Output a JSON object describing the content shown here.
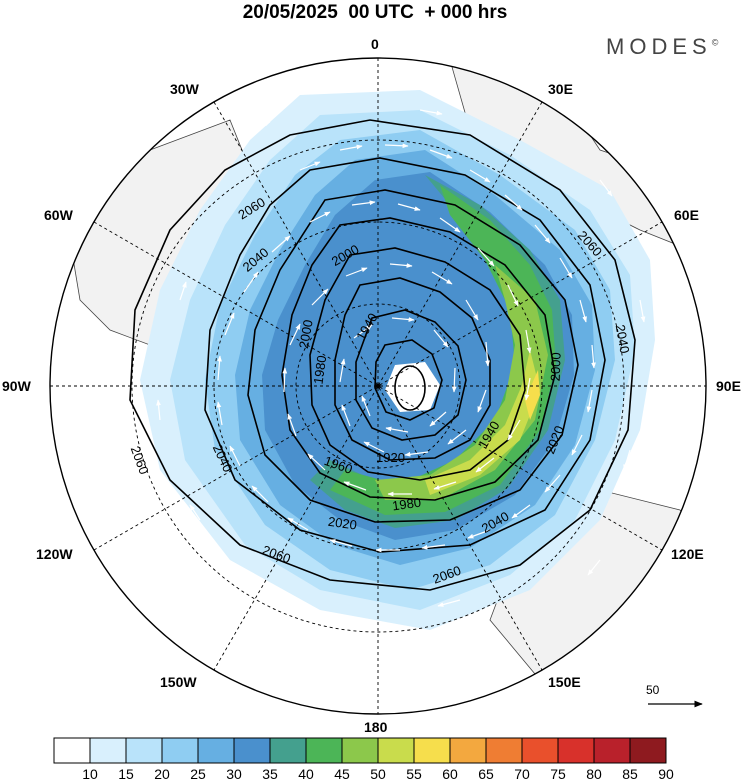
{
  "header": {
    "title": "20/05/2025  00 UTC  + 000 hrs",
    "brand": "MODES",
    "brand_mark": "©"
  },
  "map": {
    "projection": "polar stereographic (south pole centered)",
    "longitude_labels": [
      {
        "name": "lon-0",
        "text": "0"
      },
      {
        "name": "lon-30e",
        "text": "30E"
      },
      {
        "name": "lon-60e",
        "text": "60E"
      },
      {
        "name": "lon-90e",
        "text": "90E"
      },
      {
        "name": "lon-120e",
        "text": "120E"
      },
      {
        "name": "lon-150e",
        "text": "150E"
      },
      {
        "name": "lon-180",
        "text": "180"
      },
      {
        "name": "lon-150w",
        "text": "150W"
      },
      {
        "name": "lon-120w",
        "text": "120W"
      },
      {
        "name": "lon-90w",
        "text": "90W"
      },
      {
        "name": "lon-60w",
        "text": "60W"
      },
      {
        "name": "lon-30w",
        "text": "30W"
      }
    ],
    "contour_labels": [
      "2060",
      "2060",
      "2060",
      "2060",
      "2060",
      "2040",
      "2040",
      "2040",
      "2040",
      "2020",
      "2020",
      "2000",
      "2000",
      "2000",
      "1980",
      "1980",
      "1960",
      "1940",
      "1940",
      "1920"
    ],
    "wind_reference": {
      "value": "50"
    }
  },
  "colorbar": {
    "ticks": [
      "10",
      "15",
      "20",
      "25",
      "30",
      "35",
      "40",
      "45",
      "50",
      "55",
      "60",
      "65",
      "70",
      "75",
      "80",
      "85",
      "90"
    ],
    "colors": [
      "#ffffff",
      "#d9f0fd",
      "#b9e3fa",
      "#8fcdf2",
      "#66afe2",
      "#4a90cd",
      "#44a08e",
      "#4cb557",
      "#8cc84b",
      "#c9dc4c",
      "#f6de4c",
      "#f3a83f",
      "#ef7d33",
      "#e9502c",
      "#d8312b",
      "#b9212b",
      "#8e1a1f"
    ]
  }
}
